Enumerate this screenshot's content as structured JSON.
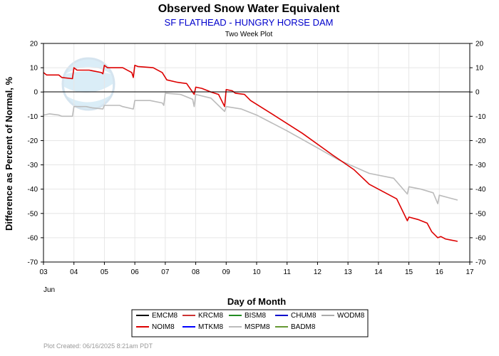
{
  "chart_data": {
    "type": "line",
    "title": "Observed Snow Water Equivalent",
    "subtitle": "SF FLATHEAD - HUNGRY HORSE DAM",
    "plot_label": "Two Week Plot",
    "xlabel": "Day of Month",
    "ylabel": "Difference as Percent of Normal, %",
    "month_label": "Jun",
    "xlim": [
      3,
      17
    ],
    "ylim": [
      -70,
      20
    ],
    "x_ticks": [
      "03",
      "04",
      "05",
      "06",
      "07",
      "08",
      "09",
      "10",
      "11",
      "12",
      "13",
      "14",
      "15",
      "16",
      "17"
    ],
    "y_ticks": [
      20,
      10,
      0,
      -10,
      -20,
      -30,
      -40,
      -50,
      -60,
      -70
    ],
    "grid": true,
    "legend": {
      "placement": "bottom",
      "entries": [
        {
          "name": "EMCM8",
          "color": "#000000"
        },
        {
          "name": "KRCM8",
          "color": "#cc3333"
        },
        {
          "name": "BISM8",
          "color": "#228b22"
        },
        {
          "name": "CHUM8",
          "color": "#0000cc"
        },
        {
          "name": "WODM8",
          "color": "#aaaaaa"
        },
        {
          "name": "NOIM8",
          "color": "#dd0000"
        },
        {
          "name": "MTKM8",
          "color": "#0000ff"
        },
        {
          "name": "MSPM8",
          "color": "#bbbbbb"
        },
        {
          "name": "BADM8",
          "color": "#669933"
        }
      ]
    },
    "series": [
      {
        "name": "NOIM8",
        "color": "#dd0000",
        "points": [
          [
            3.0,
            8
          ],
          [
            3.1,
            7
          ],
          [
            3.5,
            7
          ],
          [
            3.6,
            6
          ],
          [
            3.95,
            5.5
          ],
          [
            4.0,
            10
          ],
          [
            4.1,
            9
          ],
          [
            4.5,
            9
          ],
          [
            4.9,
            8
          ],
          [
            4.95,
            7.5
          ],
          [
            5.0,
            11
          ],
          [
            5.1,
            10
          ],
          [
            5.6,
            10
          ],
          [
            5.9,
            8
          ],
          [
            5.95,
            6
          ],
          [
            6.0,
            11
          ],
          [
            6.1,
            10.5
          ],
          [
            6.6,
            10
          ],
          [
            6.9,
            8
          ],
          [
            7.05,
            5
          ],
          [
            7.4,
            4
          ],
          [
            7.7,
            3.5
          ],
          [
            7.95,
            -1
          ],
          [
            8.0,
            2
          ],
          [
            8.2,
            1.5
          ],
          [
            8.5,
            0
          ],
          [
            8.75,
            -1
          ],
          [
            8.95,
            -6
          ],
          [
            9.0,
            1
          ],
          [
            9.2,
            0.5
          ],
          [
            9.3,
            -0.5
          ],
          [
            9.6,
            -1
          ],
          [
            9.8,
            -3.5
          ],
          [
            10.5,
            -9
          ],
          [
            11.5,
            -17
          ],
          [
            12.5,
            -26
          ],
          [
            13.2,
            -32
          ],
          [
            13.7,
            -38
          ],
          [
            14.0,
            -40
          ],
          [
            14.6,
            -44
          ],
          [
            14.95,
            -53
          ],
          [
            15.0,
            -51.5
          ],
          [
            15.3,
            -52.5
          ],
          [
            15.6,
            -54
          ],
          [
            15.75,
            -57.5
          ],
          [
            15.95,
            -60
          ],
          [
            16.05,
            -59.5
          ],
          [
            16.2,
            -60.5
          ],
          [
            16.4,
            -61
          ],
          [
            16.6,
            -61.5
          ]
        ]
      },
      {
        "name": "MSPM8",
        "color": "#bbbbbb",
        "points": [
          [
            3.0,
            -9.5
          ],
          [
            3.2,
            -9
          ],
          [
            3.5,
            -9.5
          ],
          [
            3.6,
            -10
          ],
          [
            3.95,
            -10
          ],
          [
            4.0,
            -6
          ],
          [
            4.4,
            -6
          ],
          [
            4.6,
            -6.5
          ],
          [
            4.95,
            -7
          ],
          [
            5.0,
            -5.5
          ],
          [
            5.5,
            -5.5
          ],
          [
            5.6,
            -6
          ],
          [
            5.95,
            -7
          ],
          [
            6.0,
            -3.5
          ],
          [
            6.5,
            -3.5
          ],
          [
            6.9,
            -4.5
          ],
          [
            6.95,
            -5.5
          ],
          [
            7.0,
            -0.5
          ],
          [
            7.5,
            -1
          ],
          [
            7.9,
            -3
          ],
          [
            7.95,
            -6
          ],
          [
            8.0,
            -1
          ],
          [
            8.5,
            -2.5
          ],
          [
            8.95,
            -8
          ],
          [
            9.0,
            -6
          ],
          [
            9.5,
            -7
          ],
          [
            10.0,
            -9.5
          ],
          [
            11.0,
            -16
          ],
          [
            12.0,
            -23
          ],
          [
            12.7,
            -28
          ],
          [
            13.7,
            -33.5
          ],
          [
            14.5,
            -35.5
          ],
          [
            14.95,
            -42
          ],
          [
            15.0,
            -39
          ],
          [
            15.4,
            -40
          ],
          [
            15.8,
            -41.5
          ],
          [
            15.95,
            -46
          ],
          [
            16.0,
            -42.5
          ],
          [
            16.3,
            -43.5
          ],
          [
            16.6,
            -44.5
          ]
        ]
      }
    ],
    "footer": "Plot Created:  06/16/2025  8:21am PDT"
  }
}
